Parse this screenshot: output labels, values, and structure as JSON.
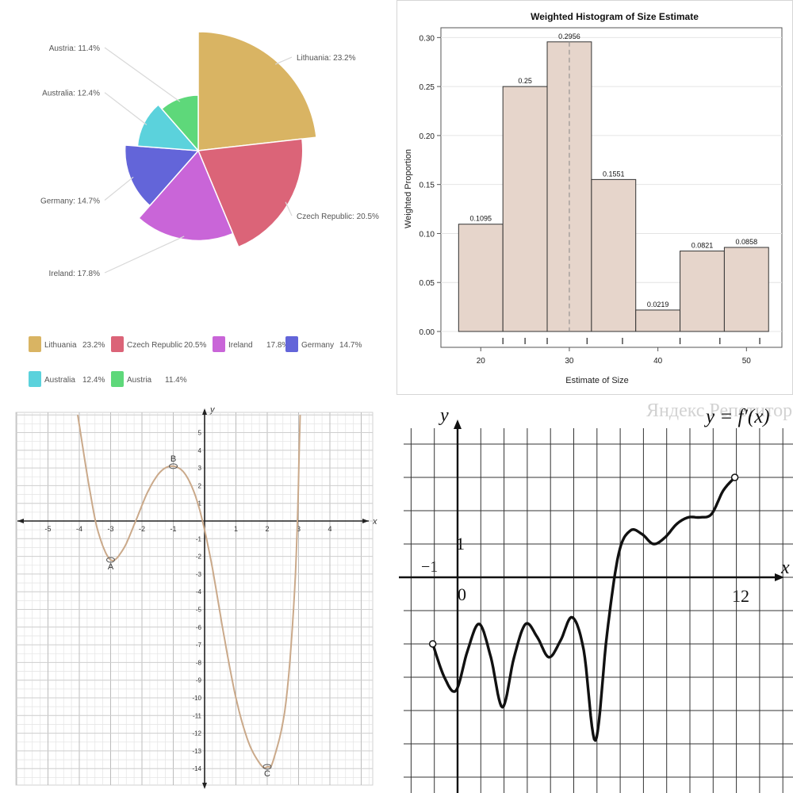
{
  "pie": {
    "type": "pie",
    "variant": "variable-radius",
    "slices": [
      {
        "name": "Lithuania",
        "value": 23.2,
        "label": "Lithuania: 23.2%",
        "legend_pct": "23.2%",
        "color": "#d9b463"
      },
      {
        "name": "Czech Republic",
        "value": 20.5,
        "label": "Czech Republic: 20.5%",
        "legend_pct": "20.5%",
        "color": "#db6478"
      },
      {
        "name": "Ireland",
        "value": 17.8,
        "label": "Ireland: 17.8%",
        "legend_pct": "17.8%",
        "color": "#c965d8"
      },
      {
        "name": "Germany",
        "value": 14.7,
        "label": "Germany: 14.7%",
        "legend_pct": "14.7%",
        "color": "#6365d9"
      },
      {
        "name": "Australia",
        "value": 12.4,
        "label": "Australia: 12.4%",
        "legend_pct": "12.4%",
        "color": "#5bd2dc"
      },
      {
        "name": "Austria",
        "value": 11.4,
        "label": "Austria: 11.4%",
        "legend_pct": "11.4%",
        "color": "#5ed87a"
      }
    ]
  },
  "chart_data": [
    {
      "type": "pie",
      "categories": [
        "Lithuania",
        "Czech Republic",
        "Ireland",
        "Germany",
        "Australia",
        "Austria"
      ],
      "values": [
        23.2,
        20.5,
        17.8,
        14.7,
        12.4,
        11.4
      ],
      "legend": "bottom"
    },
    {
      "type": "bar",
      "title": "Weighted Histogram of Size Estimate",
      "xlabel": "Estimate of Size",
      "ylabel": "Weighted Proportion",
      "bin_edges": [
        17.5,
        22.5,
        27.5,
        32.5,
        37.5,
        42.5,
        47.5,
        52.5
      ],
      "values": [
        0.1095,
        0.25,
        0.2956,
        0.1551,
        0.0219,
        0.0821,
        0.0858
      ],
      "value_labels": [
        "0.1095",
        "0.25",
        "0.2956",
        "0.1551",
        "0.0219",
        "0.0821",
        "0.0858"
      ],
      "xticks": [
        20,
        30,
        40,
        50
      ],
      "xtick_labels": [
        "20",
        "30",
        "40",
        "50"
      ],
      "yticks": [
        0,
        0.05,
        0.1,
        0.15,
        0.2,
        0.25,
        0.3
      ],
      "ytick_labels": [
        "0.00",
        "0.05",
        "0.10",
        "0.15",
        "0.20",
        "0.25",
        "0.30"
      ],
      "ylim": [
        0,
        0.31
      ],
      "xlim": [
        15.5,
        54
      ],
      "reference_line_x": 30,
      "bar_color": "#e6d5cb"
    },
    {
      "type": "line",
      "xlabel": "x",
      "ylabel": "y",
      "xlim": [
        -6,
        5
      ],
      "ylim": [
        -14.5,
        6
      ],
      "xticks": [
        -5,
        -4,
        -3,
        -2,
        -1,
        1,
        2,
        3,
        4
      ],
      "xtick_labels": [
        "-5",
        "-4",
        "-3",
        "-2",
        "-1",
        "1",
        "2",
        "3",
        "4"
      ],
      "yticks": [
        5,
        4,
        3,
        2,
        1,
        -1,
        -2,
        -3,
        -4,
        -5,
        -6,
        -7,
        -8,
        -9,
        -10,
        -11,
        -12,
        -13,
        -14
      ],
      "ytick_labels": [
        "5",
        "4",
        "3",
        "2",
        "1",
        "-1",
        "-2",
        "-3",
        "-4",
        "-5",
        "-6",
        "-7",
        "-8",
        "-9",
        "-10",
        "-11",
        "-12",
        "-13",
        "-14"
      ],
      "curve": {
        "x": [
          -4.05,
          -3.7,
          -3.4,
          -3.0,
          -2.6,
          -2.2,
          -1.8,
          -1.4,
          -1.0,
          -0.6,
          -0.2,
          0.2,
          0.6,
          1.0,
          1.4,
          1.8,
          2.0,
          2.2,
          2.6,
          2.9,
          3.05
        ],
        "y": [
          6.0,
          2.1,
          -0.6,
          -2.2,
          -1.6,
          0.0,
          1.7,
          2.8,
          3.1,
          2.6,
          0.9,
          -2.2,
          -6.3,
          -10.0,
          -12.5,
          -13.8,
          -13.9,
          -13.5,
          -10.2,
          -3.0,
          6.0
        ]
      },
      "points": [
        {
          "label": "A",
          "x": -3,
          "y": -2.2
        },
        {
          "label": "B",
          "x": -1,
          "y": 3.1
        },
        {
          "label": "C",
          "x": 2,
          "y": -13.9
        }
      ],
      "grid": true
    },
    {
      "type": "line",
      "title": "y = f′(x)",
      "xlabel": "x",
      "ylabel": "y",
      "xlim": [
        -2,
        13.5
      ],
      "ylim": [
        -6.5,
        5
      ],
      "labels": {
        "neg_one": "−1",
        "zero": "0",
        "one": "1",
        "twelve": "12"
      },
      "curve": {
        "x": [
          -1,
          -0.5,
          0,
          0.5,
          1,
          1.5,
          2,
          2.5,
          3,
          3.5,
          4,
          4.5,
          5,
          5.5,
          6,
          6.5,
          7,
          7.5,
          8,
          8.5,
          9,
          9.5,
          10,
          10.5,
          11,
          11.5,
          12
        ],
        "y": [
          -2,
          -3.0,
          -3.4,
          -2.2,
          -1.4,
          -2.4,
          -3.9,
          -2.4,
          -1.4,
          -1.8,
          -2.4,
          -1.9,
          -1.2,
          -2.2,
          -4.9,
          -1.7,
          0.7,
          1.4,
          1.3,
          1.0,
          1.2,
          1.6,
          1.8,
          1.8,
          1.9,
          2.6,
          3.0
        ]
      },
      "endpoints": [
        {
          "x": -1,
          "y": -2
        },
        {
          "x": 12,
          "y": 3.0
        }
      ],
      "grid": true,
      "watermark": "Яндекс Репетитор"
    }
  ],
  "hist": {
    "title": "Weighted Histogram of Size Estimate",
    "xlabel": "Estimate of Size",
    "ylabel": "Weighted Proportion"
  },
  "curve1": {
    "axis_x": "x",
    "axis_y": "y",
    "points": [
      "A",
      "B",
      "C"
    ]
  },
  "deriv": {
    "title": "y = f′(x)",
    "axis_x": "x",
    "axis_y": "y",
    "labels": {
      "neg_one": "−1",
      "zero": "0",
      "one": "1",
      "twelve": "12"
    },
    "watermark": "Яндекс Репетитор"
  }
}
